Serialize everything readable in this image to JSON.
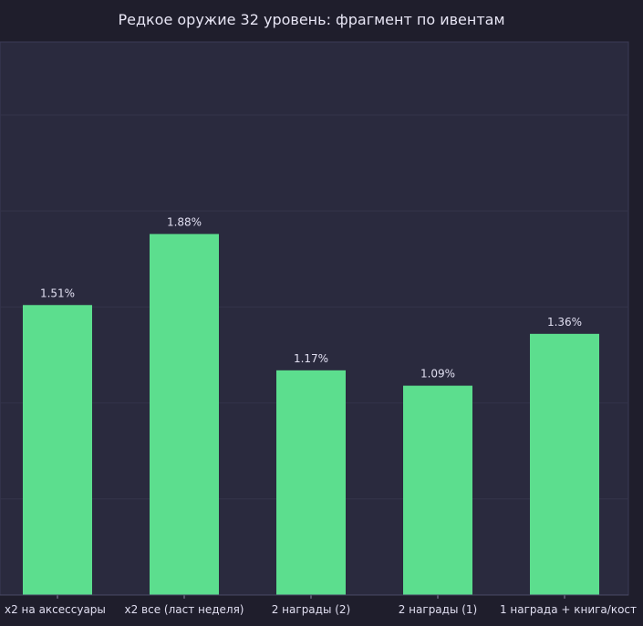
{
  "chart_data": {
    "type": "bar",
    "title": "Редкое оружие 32 уровень: фрагмент по ивентам",
    "categories": [
      "x2 на аксессуары",
      "x2 все (ласт неделя)",
      "2 награды (2)",
      "2 награды (1)",
      "1 награда + книга/кост"
    ],
    "values": [
      1.51,
      1.88,
      1.17,
      1.09,
      1.36
    ],
    "value_labels": [
      "1.51%",
      "1.88%",
      "1.17%",
      "1.09%",
      "1.36%"
    ],
    "ylim": [
      0,
      2.88
    ],
    "grid": true,
    "colors": {
      "bar": "#5cde8e",
      "plot_bg": "#2a2a3e",
      "page_bg": "#1f1e2c",
      "grid": "#34344a",
      "text": "#e0def0"
    }
  }
}
